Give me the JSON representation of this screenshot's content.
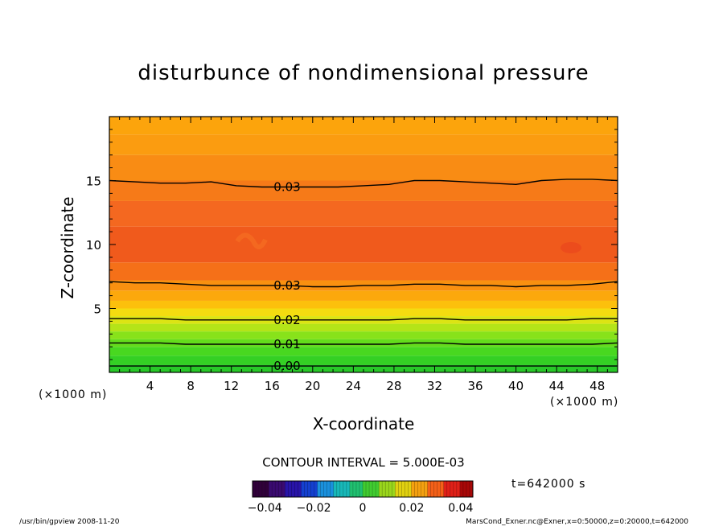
{
  "chart_data": {
    "type": "heatmap",
    "title": "disturbunce of nondimensional pressure",
    "xlabel": "X-coordinate",
    "ylabel": "Z-coordinate",
    "x_unit": "(×1000 m)",
    "y_unit": "(×1000 m)",
    "xlim": [
      0,
      50
    ],
    "ylim": [
      0,
      20
    ],
    "x_ticks": [
      4,
      8,
      12,
      16,
      20,
      24,
      28,
      32,
      36,
      40,
      44,
      48
    ],
    "y_ticks": [
      5,
      10,
      15
    ],
    "grid": false,
    "contour_interval_text": "CONTOUR INTERVAL = 5.000E-03",
    "contours": [
      {
        "level": 0.03,
        "label": "0.03",
        "z": [
          15.0,
          14.9,
          14.8,
          14.8,
          14.9,
          14.6,
          14.5,
          14.5,
          14.5,
          14.5,
          14.6,
          14.7,
          15.0,
          15.0,
          14.9,
          14.8,
          14.7,
          15.0,
          15.1,
          15.1,
          15.0
        ]
      },
      {
        "level": 0.03,
        "label": "0.03",
        "z": [
          7.1,
          7.0,
          7.0,
          6.9,
          6.8,
          6.8,
          6.8,
          6.8,
          6.7,
          6.7,
          6.8,
          6.8,
          6.9,
          6.9,
          6.8,
          6.8,
          6.7,
          6.8,
          6.8,
          6.9,
          7.1
        ]
      },
      {
        "level": 0.02,
        "label": "0.02",
        "z": [
          4.2,
          4.2,
          4.2,
          4.1,
          4.1,
          4.1,
          4.1,
          4.1,
          4.1,
          4.1,
          4.1,
          4.1,
          4.2,
          4.2,
          4.1,
          4.1,
          4.1,
          4.1,
          4.1,
          4.2,
          4.2
        ]
      },
      {
        "level": 0.01,
        "label": "0.01",
        "z": [
          2.3,
          2.3,
          2.3,
          2.2,
          2.2,
          2.2,
          2.2,
          2.2,
          2.2,
          2.2,
          2.2,
          2.2,
          2.3,
          2.3,
          2.2,
          2.2,
          2.2,
          2.2,
          2.2,
          2.2,
          2.3
        ]
      },
      {
        "level": 0.0,
        "label": "0.00",
        "z": [
          0.5,
          0.5,
          0.5,
          0.5,
          0.5,
          0.5,
          0.5,
          0.5,
          0.5,
          0.5,
          0.5,
          0.5,
          0.5,
          0.5,
          0.5,
          0.5,
          0.5,
          0.5,
          0.5,
          0.5,
          0.5
        ]
      }
    ],
    "fill_bands": [
      {
        "z": [
          0.0,
          0.6
        ],
        "color": "#28c828"
      },
      {
        "z": [
          0.6,
          1.3
        ],
        "color": "#34d024"
      },
      {
        "z": [
          1.3,
          2.0
        ],
        "color": "#48d820"
      },
      {
        "z": [
          2.0,
          2.6
        ],
        "color": "#64dc1c"
      },
      {
        "z": [
          2.6,
          3.2
        ],
        "color": "#88e21a"
      },
      {
        "z": [
          3.2,
          3.8
        ],
        "color": "#b4e418"
      },
      {
        "z": [
          3.8,
          4.4
        ],
        "color": "#dce414"
      },
      {
        "z": [
          4.4,
          5.0
        ],
        "color": "#f4dc10"
      },
      {
        "z": [
          5.0,
          5.6
        ],
        "color": "#fcc00c"
      },
      {
        "z": [
          5.6,
          6.4
        ],
        "color": "#fca80c"
      },
      {
        "z": [
          6.4,
          7.2
        ],
        "color": "#f99010"
      },
      {
        "z": [
          7.2,
          8.6
        ],
        "color": "#f57018"
      },
      {
        "z": [
          8.6,
          11.4
        ],
        "color": "#f05a1c"
      },
      {
        "z": [
          11.4,
          13.4
        ],
        "color": "#f46820"
      },
      {
        "z": [
          13.4,
          15.0
        ],
        "color": "#f67a18"
      },
      {
        "z": [
          15.0,
          17.0
        ],
        "color": "#f98c14"
      },
      {
        "z": [
          17.0,
          18.6
        ],
        "color": "#fb9c10"
      },
      {
        "z": [
          18.6,
          20.0
        ],
        "color": "#fca40c"
      }
    ],
    "colorbar": {
      "ticks": [
        "-0.04",
        "-0.02",
        "0",
        "0.02",
        "0.04"
      ],
      "range": [
        -0.045,
        0.045
      ],
      "colors": [
        "#30003a",
        "#3a0a70",
        "#2814a8",
        "#1440d0",
        "#1a90dc",
        "#18b8b8",
        "#20c070",
        "#40cc30",
        "#9ad61c",
        "#e0d010",
        "#f4a010",
        "#f46018",
        "#e02018",
        "#a80808"
      ]
    }
  },
  "time_text": "t=642000 s",
  "footer_left": "/usr/bin/gpview   2008-11-20",
  "footer_right": "MarsCond_Exner.nc@Exner,x=0:50000,z=0:20000,t=642000"
}
